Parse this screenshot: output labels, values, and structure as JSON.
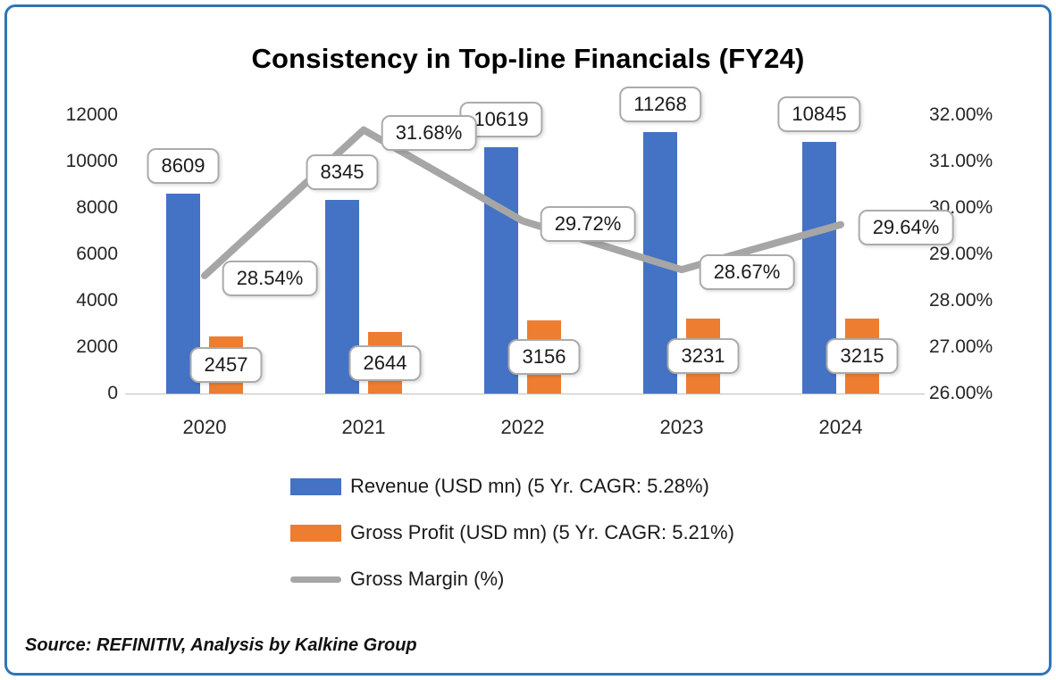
{
  "title": "Consistency in Top-line Financials (FY24)",
  "source": "Source: REFINITIV, Analysis by Kalkine Group",
  "colors": {
    "revenue": "#4472C4",
    "gross_profit": "#ED7D31",
    "margin_line": "#A6A6A6",
    "frame_border": "#2E75B6",
    "label_box_border": "#ABABAB",
    "axis_line": "#BFBFBF"
  },
  "chart_data": {
    "type": "bar",
    "subtype": "bar+line combo, dual axis",
    "title": "Consistency in Top-line Financials (FY24)",
    "categories": [
      "2020",
      "2021",
      "2022",
      "2023",
      "2024"
    ],
    "series": [
      {
        "name": "Revenue (USD mn) (5 Yr. CAGR: 5.28%)",
        "type": "bar",
        "axis": "left",
        "values": [
          8609,
          8345,
          10619,
          11268,
          10845
        ],
        "labels": [
          "8609",
          "8345",
          "10619",
          "11268",
          "10845"
        ]
      },
      {
        "name": "Gross Profit (USD mn) (5 Yr. CAGR: 5.21%)",
        "type": "bar",
        "axis": "left",
        "values": [
          2457,
          2644,
          3156,
          3231,
          3215
        ],
        "labels": [
          "2457",
          "2644",
          "3156",
          "3231",
          "3215"
        ]
      },
      {
        "name": "Gross Margin (%)",
        "type": "line",
        "axis": "right",
        "values": [
          28.54,
          31.68,
          29.72,
          28.67,
          29.64
        ],
        "labels": [
          "28.54%",
          "31.68%",
          "29.72%",
          "28.67%",
          "29.64%"
        ]
      }
    ],
    "left_axis": {
      "min": 0,
      "max": 12000,
      "step": 2000,
      "ticks": [
        "12000",
        "10000",
        "8000",
        "6000",
        "4000",
        "2000",
        "0"
      ]
    },
    "right_axis": {
      "min": 26,
      "max": 32,
      "step": 1,
      "ticks": [
        "32.00%",
        "31.00%",
        "30.00%",
        "29.00%",
        "28.00%",
        "27.00%",
        "26.00%"
      ]
    },
    "grid": "off",
    "legend_position": "bottom"
  }
}
